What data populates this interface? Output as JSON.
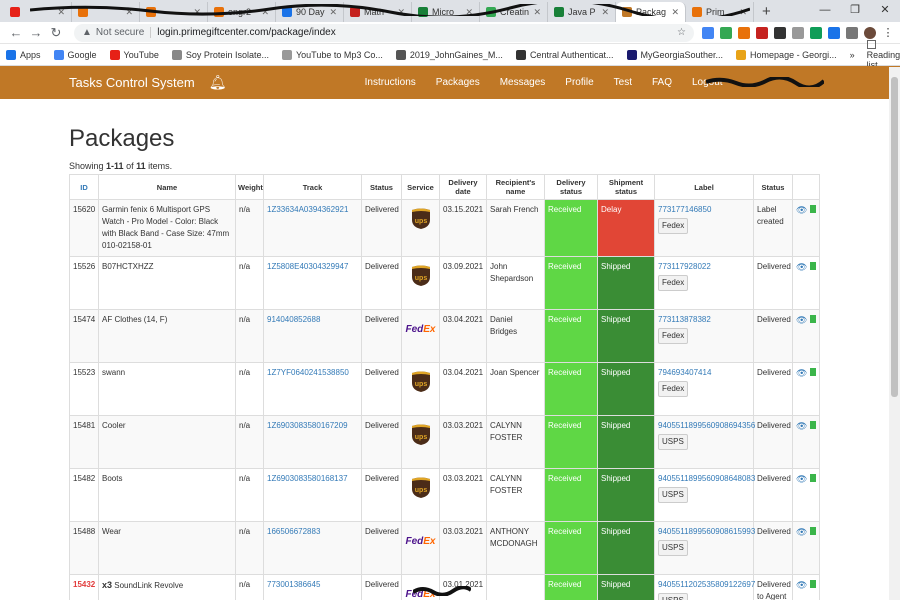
{
  "browser": {
    "tabs": [
      {
        "label": "",
        "color": "#e62117"
      },
      {
        "label": "",
        "color": "#e8710a"
      },
      {
        "label": "",
        "color": "#e8710a"
      },
      {
        "label": "engr2",
        "color": "#e8710a"
      },
      {
        "label": "90 Day",
        "color": "#1a73e8"
      },
      {
        "label": "Math",
        "color": "#c5221f"
      },
      {
        "label": "Micro",
        "color": "#188038"
      },
      {
        "label": "Creatin",
        "color": "#34a853"
      },
      {
        "label": "Java P",
        "color": "#188038"
      },
      {
        "label": "Packag",
        "color": "#c07826",
        "active": true
      },
      {
        "label": "Prim",
        "color": "#e8710a"
      }
    ],
    "url_secure_label": "Not secure",
    "url": "login.primegiftcenter.com/package/index",
    "bookmarks": [
      {
        "label": "Apps",
        "color": "#1a73e8"
      },
      {
        "label": "Google",
        "color": "#4285f4"
      },
      {
        "label": "YouTube",
        "color": "#e62117"
      },
      {
        "label": "Soy Protein Isolate...",
        "color": "#888888"
      },
      {
        "label": "YouTube to Mp3 Co...",
        "color": "#999999"
      },
      {
        "label": "2019_JohnGaines_M...",
        "color": "#555555"
      },
      {
        "label": "Central Authenticat...",
        "color": "#333333"
      },
      {
        "label": "MyGeorgiaSouther...",
        "color": "#1a1a6e"
      },
      {
        "label": "Homepage - Georgi...",
        "color": "#e8a317"
      }
    ],
    "reading_list": "Reading list"
  },
  "nav": {
    "brand": "Tasks Control System",
    "links": [
      "Instructions",
      "Packages",
      "Messages",
      "Profile",
      "Test",
      "FAQ",
      "Logout"
    ]
  },
  "page": {
    "title": "Packages",
    "summary_prefix": "Showing ",
    "summary_range": "1-11",
    "summary_of": " of ",
    "summary_total": "11",
    "summary_suffix": " items."
  },
  "table": {
    "headers": [
      "ID",
      "Name",
      "Weight",
      "Track",
      "Status",
      "Service",
      "Delivery date",
      "Recipient's name",
      "Delivery status",
      "Shipment status",
      "Label",
      "Status",
      ""
    ],
    "rows": [
      {
        "id": "15620",
        "name": "Garmin fenix 6 Multisport GPS Watch - Pro Model - Color: Black with Black Band - Case Size: 47mm 010-02158-01",
        "weight": "n/a",
        "track": "1Z33634A0394362921",
        "status": "Delivered",
        "service": "ups",
        "date": "03.15.2021",
        "recipient": "Sarah French",
        "delivery_status": "Received",
        "shipment_status": "Delay",
        "shipment_color": "red",
        "label_no": "773177146850",
        "label_carrier": "Fedex",
        "label_status": "Label created"
      },
      {
        "id": "15526",
        "name": "B07HCTXHZZ",
        "weight": "n/a",
        "track": "1Z5808E40304329947",
        "status": "Delivered",
        "service": "ups",
        "date": "03.09.2021",
        "recipient": "John Shepardson",
        "delivery_status": "Received",
        "shipment_status": "Shipped",
        "shipment_color": "green",
        "label_no": "773117928022",
        "label_carrier": "Fedex",
        "label_status": "Delivered"
      },
      {
        "id": "15474",
        "name": "AF Clothes (14, F)",
        "weight": "n/a",
        "track": "914040852688",
        "status": "Delivered",
        "service": "fedex",
        "date": "03.04.2021",
        "recipient": "Daniel Bridges",
        "delivery_status": "Received",
        "shipment_status": "Shipped",
        "shipment_color": "green",
        "label_no": "773113878382",
        "label_carrier": "Fedex",
        "label_status": "Delivered"
      },
      {
        "id": "15523",
        "name": "swann",
        "weight": "n/a",
        "track": "1Z7YF0640241538850",
        "status": "Delivered",
        "service": "ups",
        "date": "03.04.2021",
        "recipient": "Joan Spencer",
        "delivery_status": "Received",
        "shipment_status": "Shipped",
        "shipment_color": "green",
        "label_no": "794693407414",
        "label_carrier": "Fedex",
        "label_status": "Delivered"
      },
      {
        "id": "15481",
        "name": "Cooler",
        "weight": "n/a",
        "track": "1Z6903083580167209",
        "status": "Delivered",
        "service": "ups",
        "date": "03.03.2021",
        "recipient": "CALYNN FOSTER",
        "delivery_status": "Received",
        "shipment_status": "Shipped",
        "shipment_color": "green",
        "label_no": "9405511899560908694356",
        "label_carrier": "USPS",
        "label_status": "Delivered"
      },
      {
        "id": "15482",
        "name": "Boots",
        "weight": "n/a",
        "track": "1Z6903083580168137",
        "status": "Delivered",
        "service": "ups",
        "date": "03.03.2021",
        "recipient": "CALYNN FOSTER",
        "delivery_status": "Received",
        "shipment_status": "Shipped",
        "shipment_color": "green",
        "label_no": "9405511899560908648083",
        "label_carrier": "USPS",
        "label_status": "Delivered"
      },
      {
        "id": "15488",
        "name": "Wear",
        "weight": "n/a",
        "track": "166506672883",
        "status": "Delivered",
        "service": "fedex",
        "date": "03.03.2021",
        "recipient": "ANTHONY MCDONAGH",
        "delivery_status": "Received",
        "shipment_status": "Shipped",
        "shipment_color": "green",
        "label_no": "9405511899560908615993",
        "label_carrier": "USPS",
        "label_status": "Delivered"
      },
      {
        "id": "15432",
        "id_red": true,
        "qty": "x3",
        "name": "SoundLink Revolve",
        "weight": "n/a",
        "track": "773001386645",
        "status": "Delivered",
        "service": "fedex",
        "date": "03.01.2021",
        "recipient": "",
        "delivery_status": "Received",
        "shipment_status": "Shipped",
        "shipment_color": "green",
        "label_no": "9405511202535809122697",
        "label_carrier": "USPS",
        "label_status": "Delivered to Agent"
      }
    ]
  },
  "carriers": {
    "ups": "ups",
    "fedex_fe": "Fed",
    "fedex_ex": "Ex"
  },
  "colors": {
    "navbar": "#c07826",
    "delivery_green": "#5fd745",
    "shipment_green": "#3a8d35",
    "delay_red": "#e14636",
    "link": "#337ab7"
  },
  "icons": {
    "bell": "bell-icon",
    "view": "eye-icon",
    "file": "file-icon"
  }
}
